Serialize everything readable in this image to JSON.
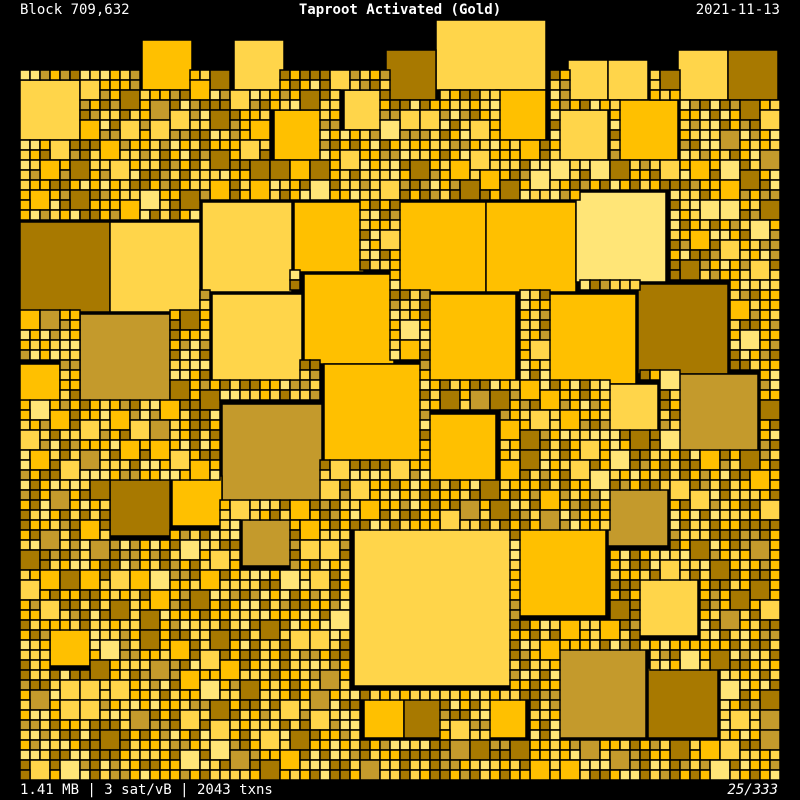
{
  "header": {
    "block": "Block 709,632",
    "title": "Taproot Activated (Gold)",
    "date": "2021-11-13"
  },
  "footer": {
    "stats": "1.41 MB | 3 sat/vB | 2043 txns",
    "index": "25/333"
  }
}
